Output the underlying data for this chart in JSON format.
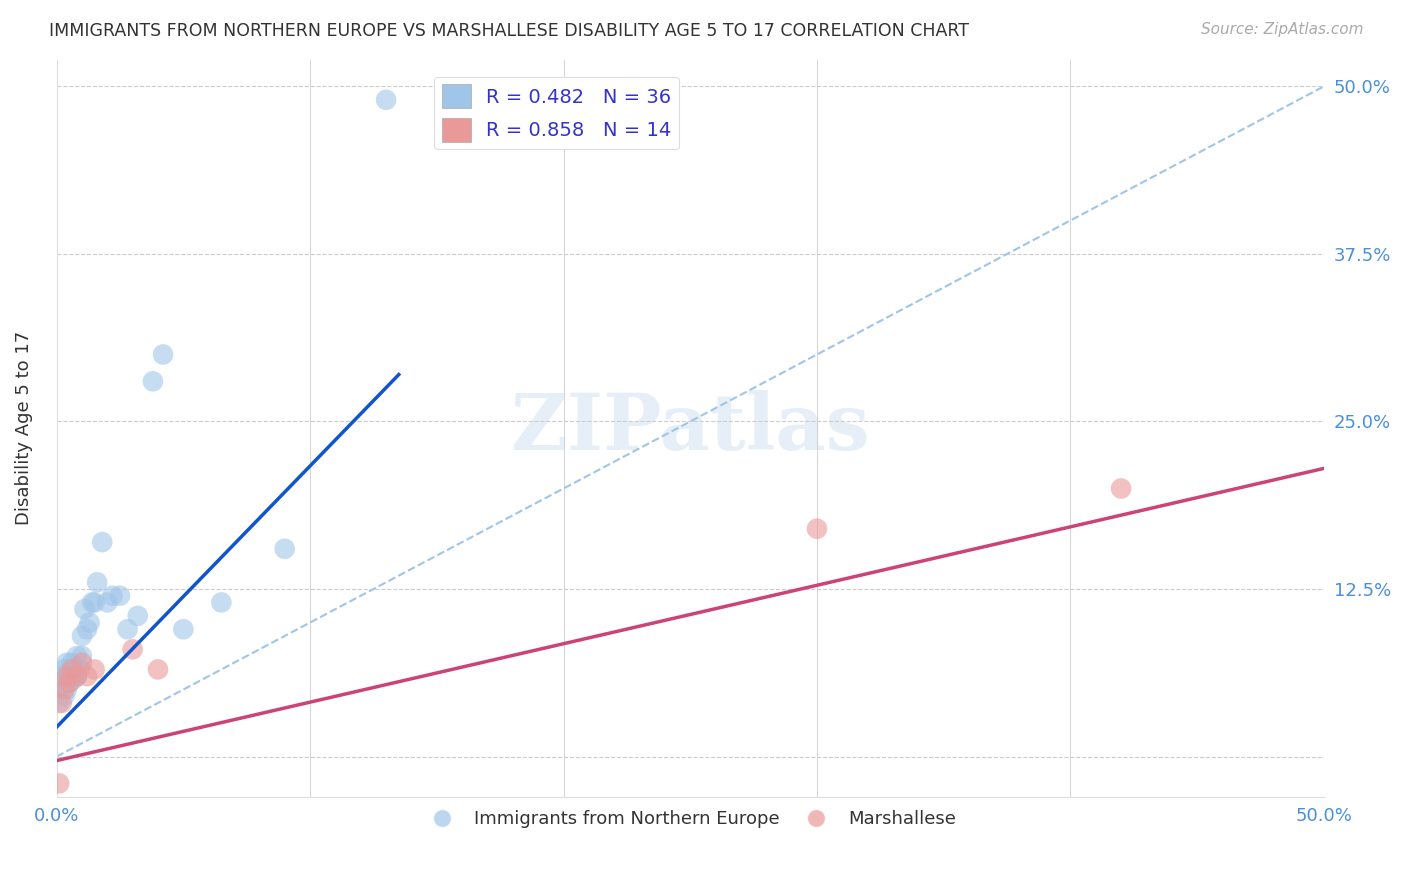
{
  "title": "IMMIGRANTS FROM NORTHERN EUROPE VS MARSHALLESE DISABILITY AGE 5 TO 17 CORRELATION CHART",
  "source": "Source: ZipAtlas.com",
  "ylabel": "Disability Age 5 to 17",
  "xlim": [
    0.0,
    0.5
  ],
  "ylim": [
    -0.03,
    0.52
  ],
  "xticks": [
    0.0,
    0.1,
    0.2,
    0.3,
    0.4,
    0.5
  ],
  "xtick_labels": [
    "0.0%",
    "",
    "",
    "",
    "",
    "50.0%"
  ],
  "yticks": [
    0.0,
    0.125,
    0.25,
    0.375,
    0.5
  ],
  "ytick_labels_right": [
    "",
    "12.5%",
    "25.0%",
    "37.5%",
    "50.0%"
  ],
  "blue_color": "#9fc5e8",
  "pink_color": "#ea9999",
  "line_blue": "#1155cc",
  "line_pink": "#cc4477",
  "diag_color": "#9fc5e8",
  "grid_color": "#cccccc",
  "blue_scatter_x": [
    0.001,
    0.002,
    0.002,
    0.003,
    0.003,
    0.004,
    0.004,
    0.005,
    0.005,
    0.006,
    0.006,
    0.007,
    0.007,
    0.008,
    0.008,
    0.009,
    0.01,
    0.01,
    0.011,
    0.012,
    0.013,
    0.014,
    0.015,
    0.016,
    0.018,
    0.02,
    0.022,
    0.025,
    0.028,
    0.032,
    0.038,
    0.042,
    0.05,
    0.065,
    0.09,
    0.13
  ],
  "blue_scatter_y": [
    0.04,
    0.055,
    0.06,
    0.045,
    0.065,
    0.05,
    0.07,
    0.055,
    0.065,
    0.06,
    0.07,
    0.058,
    0.068,
    0.06,
    0.075,
    0.065,
    0.075,
    0.09,
    0.11,
    0.095,
    0.1,
    0.115,
    0.115,
    0.13,
    0.16,
    0.115,
    0.12,
    0.12,
    0.095,
    0.105,
    0.28,
    0.3,
    0.095,
    0.115,
    0.155,
    0.49
  ],
  "pink_scatter_x": [
    0.001,
    0.002,
    0.003,
    0.004,
    0.005,
    0.006,
    0.008,
    0.01,
    0.012,
    0.015,
    0.03,
    0.04,
    0.3,
    0.42
  ],
  "pink_scatter_y": [
    -0.02,
    0.04,
    0.05,
    0.06,
    0.055,
    0.065,
    0.06,
    0.07,
    0.06,
    0.065,
    0.08,
    0.065,
    0.17,
    0.2
  ],
  "blue_line_x": [
    0.0,
    0.135
  ],
  "blue_line_y": [
    0.022,
    0.285
  ],
  "pink_line_x": [
    0.0,
    0.5
  ],
  "pink_line_y": [
    -0.003,
    0.215
  ]
}
